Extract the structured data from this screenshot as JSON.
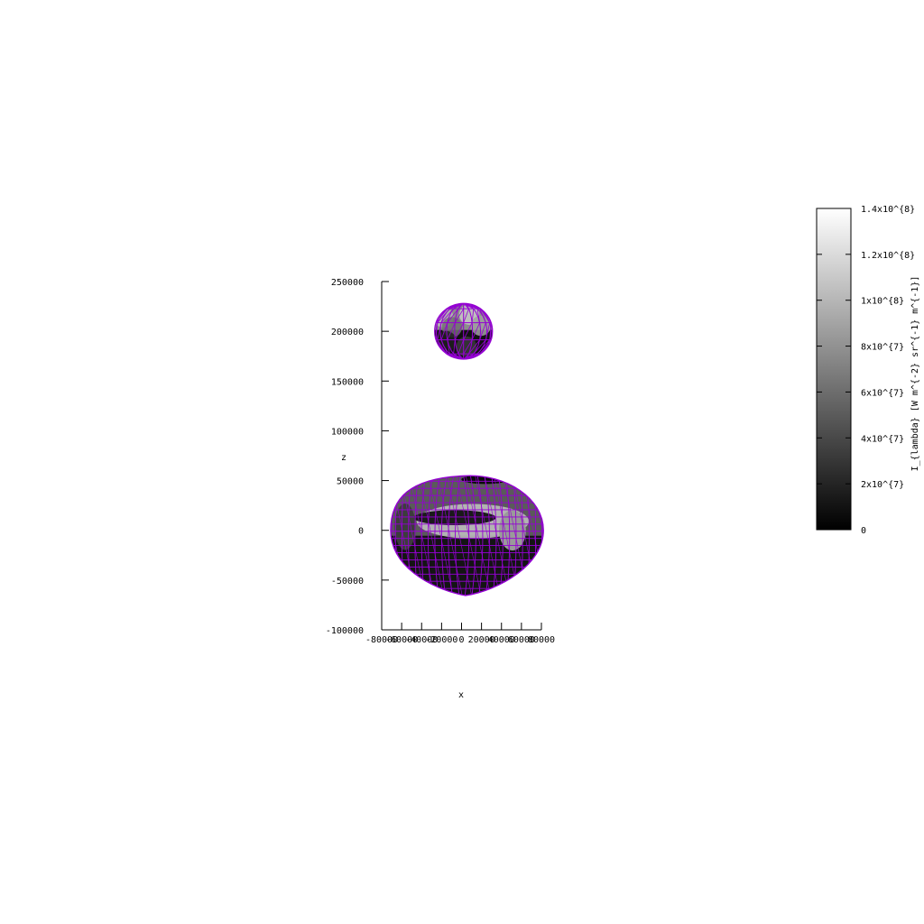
{
  "chart_data": {
    "type": "surface3d",
    "view": "x-z projection",
    "xlabel": "x",
    "ylabel": "z",
    "xlim": [
      -80000,
      80000
    ],
    "ylim": [
      -100000,
      250000
    ],
    "x_ticks": [
      -80000,
      -60000,
      -40000,
      -20000,
      0,
      20000,
      40000,
      60000,
      80000
    ],
    "x_tick_labels": [
      "-80000",
      "-60000",
      "-40000",
      "-20000",
      "0",
      "20000",
      "40000",
      "60000",
      "80000"
    ],
    "z_ticks": [
      -100000,
      -50000,
      0,
      50000,
      100000,
      150000,
      200000,
      250000
    ],
    "z_tick_labels": [
      "-100000",
      "-50000",
      "0",
      "50000",
      "100000",
      "150000",
      "200000",
      "250000"
    ],
    "mesh_color": "#9400d3",
    "objects": [
      {
        "name": "",
        "shape": "sphere",
        "center_x": 2000,
        "center_z": 200000,
        "radius_x": 29000,
        "radius_z": 28000
      },
      {
        "name": "",
        "shape": "disc",
        "center_x": 4000,
        "center_z": 0,
        "radius_x": 75000,
        "radius_z": 58000
      }
    ],
    "colorbar": {
      "label": "I_{lambda} [W m^{-2} sr^{-1} m^{-1}]",
      "range": [
        0,
        140000000
      ],
      "colormap": "gray",
      "ticks": [
        0,
        20000000,
        40000000,
        60000000,
        80000000,
        100000000,
        120000000,
        140000000
      ],
      "tick_labels": [
        "0",
        "2x10^{7}",
        "4x10^{7}",
        "6x10^{7}",
        "8x10^{7}",
        "1x10^{8}",
        "1.2x10^{8}",
        "1.4x10^{8}"
      ]
    }
  }
}
